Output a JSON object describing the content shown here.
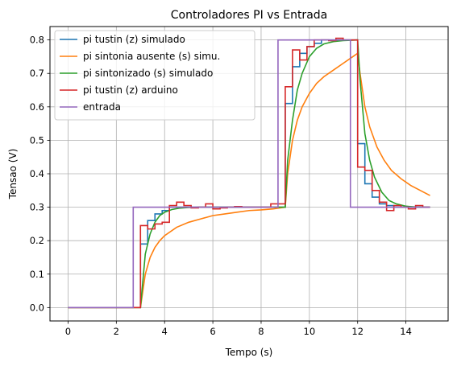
{
  "chart_data": {
    "type": "line",
    "title": "Controladores PI vs Entrada",
    "xlabel": "Tempo (s)",
    "ylabel": "Tensao (V)",
    "xlim": [
      -0.75,
      15.75
    ],
    "ylim": [
      -0.04,
      0.84
    ],
    "xticks": [
      0,
      2,
      4,
      6,
      8,
      10,
      12,
      14
    ],
    "xtick_labels": [
      "0",
      "2",
      "4",
      "6",
      "8",
      "10",
      "12",
      "14"
    ],
    "yticks": [
      0.0,
      0.1,
      0.2,
      0.3,
      0.4,
      0.5,
      0.6,
      0.7,
      0.8
    ],
    "ytick_labels": [
      "0.0",
      "0.1",
      "0.2",
      "0.3",
      "0.4",
      "0.5",
      "0.6",
      "0.7",
      "0.8"
    ],
    "grid": true,
    "legend_position": "upper left",
    "series": [
      {
        "name": "pi tustin (z) simulado",
        "color": "#1f77b4",
        "style": "step",
        "x": [
          0,
          2.7,
          3.0,
          3.3,
          3.6,
          3.9,
          4.2,
          4.5,
          4.8,
          5.1,
          5.4,
          5.7,
          6.0,
          8.7,
          9.0,
          9.3,
          9.6,
          9.9,
          10.2,
          10.5,
          10.8,
          11.1,
          11.4,
          11.7,
          12.0,
          12.3,
          12.6,
          12.9,
          13.2,
          13.5,
          13.8,
          14.1,
          14.4,
          14.7,
          15.0
        ],
        "y": [
          0,
          0,
          0.19,
          0.26,
          0.28,
          0.29,
          0.3,
          0.3,
          0.3,
          0.3,
          0.3,
          0.3,
          0.3,
          0.3,
          0.61,
          0.72,
          0.76,
          0.78,
          0.79,
          0.8,
          0.8,
          0.8,
          0.8,
          0.8,
          0.49,
          0.37,
          0.33,
          0.31,
          0.305,
          0.3,
          0.3,
          0.3,
          0.3,
          0.3,
          0.3
        ]
      },
      {
        "name": "pi sintonia ausente (s) simu.",
        "color": "#ff7f0e",
        "style": "line",
        "x": [
          0,
          2.9,
          3.0,
          3.2,
          3.4,
          3.6,
          3.8,
          4.0,
          4.5,
          5.0,
          5.5,
          6.0,
          6.5,
          7.0,
          7.5,
          8.0,
          8.5,
          9.0,
          9.1,
          9.3,
          9.5,
          9.7,
          10.0,
          10.3,
          10.6,
          11.0,
          11.4,
          11.8,
          12.0,
          12.1,
          12.3,
          12.5,
          12.8,
          13.1,
          13.4,
          13.8,
          14.2,
          14.6,
          15.0
        ],
        "y": [
          0,
          0,
          0.0,
          0.1,
          0.15,
          0.18,
          0.2,
          0.215,
          0.24,
          0.255,
          0.265,
          0.275,
          0.28,
          0.285,
          0.29,
          0.292,
          0.295,
          0.3,
          0.4,
          0.5,
          0.56,
          0.6,
          0.64,
          0.67,
          0.69,
          0.71,
          0.73,
          0.75,
          0.76,
          0.7,
          0.6,
          0.54,
          0.48,
          0.44,
          0.41,
          0.385,
          0.365,
          0.35,
          0.335
        ]
      },
      {
        "name": "pi sintonizado (s) simulado",
        "color": "#2ca02c",
        "style": "line",
        "x": [
          0,
          2.9,
          3.0,
          3.2,
          3.4,
          3.6,
          3.8,
          4.0,
          4.3,
          4.6,
          5.0,
          5.5,
          6.0,
          7.0,
          8.0,
          9.0,
          9.1,
          9.3,
          9.5,
          9.7,
          10.0,
          10.3,
          10.6,
          11.0,
          11.4,
          12.0,
          12.1,
          12.3,
          12.5,
          12.7,
          13.0,
          13.3,
          13.6,
          14.0,
          14.5,
          15.0
        ],
        "y": [
          0,
          0,
          0.0,
          0.16,
          0.22,
          0.255,
          0.275,
          0.285,
          0.293,
          0.297,
          0.299,
          0.3,
          0.3,
          0.3,
          0.3,
          0.3,
          0.44,
          0.56,
          0.65,
          0.7,
          0.75,
          0.775,
          0.788,
          0.795,
          0.798,
          0.8,
          0.68,
          0.52,
          0.44,
          0.39,
          0.345,
          0.32,
          0.31,
          0.303,
          0.3,
          0.3
        ]
      },
      {
        "name": "pi tustin (z) arduino",
        "color": "#d62728",
        "style": "step",
        "x": [
          0,
          2.7,
          3.0,
          3.3,
          3.6,
          3.9,
          4.2,
          4.5,
          4.8,
          5.1,
          5.4,
          5.7,
          6.0,
          6.3,
          6.6,
          6.9,
          7.2,
          7.5,
          7.8,
          8.1,
          8.4,
          8.7,
          9.0,
          9.3,
          9.6,
          9.9,
          10.2,
          10.5,
          10.8,
          11.1,
          11.4,
          11.7,
          12.0,
          12.3,
          12.6,
          12.9,
          13.2,
          13.5,
          13.8,
          14.1,
          14.4,
          14.7,
          15.0
        ],
        "y": [
          0,
          0,
          0.245,
          0.235,
          0.25,
          0.255,
          0.305,
          0.315,
          0.305,
          0.298,
          0.3,
          0.31,
          0.295,
          0.298,
          0.3,
          0.302,
          0.3,
          0.3,
          0.3,
          0.3,
          0.31,
          0.31,
          0.66,
          0.77,
          0.74,
          0.78,
          0.8,
          0.8,
          0.798,
          0.805,
          0.8,
          0.8,
          0.42,
          0.41,
          0.35,
          0.315,
          0.29,
          0.305,
          0.3,
          0.295,
          0.305,
          0.3,
          0.3
        ]
      },
      {
        "name": "entrada",
        "color": "#9467bd",
        "style": "line",
        "x": [
          0,
          2.7,
          2.7,
          8.7,
          8.7,
          11.7,
          11.7,
          15.0
        ],
        "y": [
          0,
          0,
          0.3,
          0.3,
          0.8,
          0.8,
          0.3,
          0.3
        ]
      }
    ]
  }
}
